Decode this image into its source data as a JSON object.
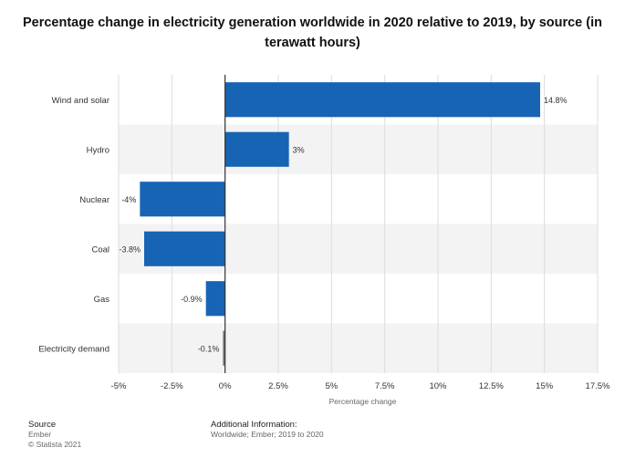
{
  "title": "Percentage change in electricity generation worldwide in 2020 relative to 2019, by source (in terawatt hours)",
  "chart_data": {
    "type": "bar",
    "orientation": "horizontal",
    "categories": [
      "Wind and solar",
      "Hydro",
      "Nuclear",
      "Coal",
      "Gas",
      "Electricity demand"
    ],
    "values": [
      14.8,
      3,
      -4,
      -3.8,
      -0.9,
      -0.1
    ],
    "data_labels": [
      "14.8%",
      "3%",
      "-4%",
      "-3.8%",
      "-0.9%",
      "-0.1%"
    ],
    "xlabel": "Percentage change",
    "ylabel": "",
    "xlim": [
      -5,
      17.5
    ],
    "xticks": [
      -5,
      -2.5,
      0,
      2.5,
      5,
      7.5,
      10,
      12.5,
      15,
      17.5
    ],
    "xtick_labels": [
      "-5%",
      "-2.5%",
      "0%",
      "2.5%",
      "5%",
      "7.5%",
      "10%",
      "12.5%",
      "15%",
      "17.5%"
    ],
    "grid": true,
    "colors": {
      "bar": "#1764b4",
      "bar_last": "#7a7a7a",
      "band": "#f3f3f3",
      "grid": "#dcdcdc",
      "zero_line": "#333333"
    }
  },
  "footer": {
    "source_heading": "Source",
    "source_lines": [
      "Ember",
      "© Statista 2021"
    ],
    "info_heading": "Additional Information:",
    "info_text": "Worldwide; Ember; 2019 to 2020"
  }
}
